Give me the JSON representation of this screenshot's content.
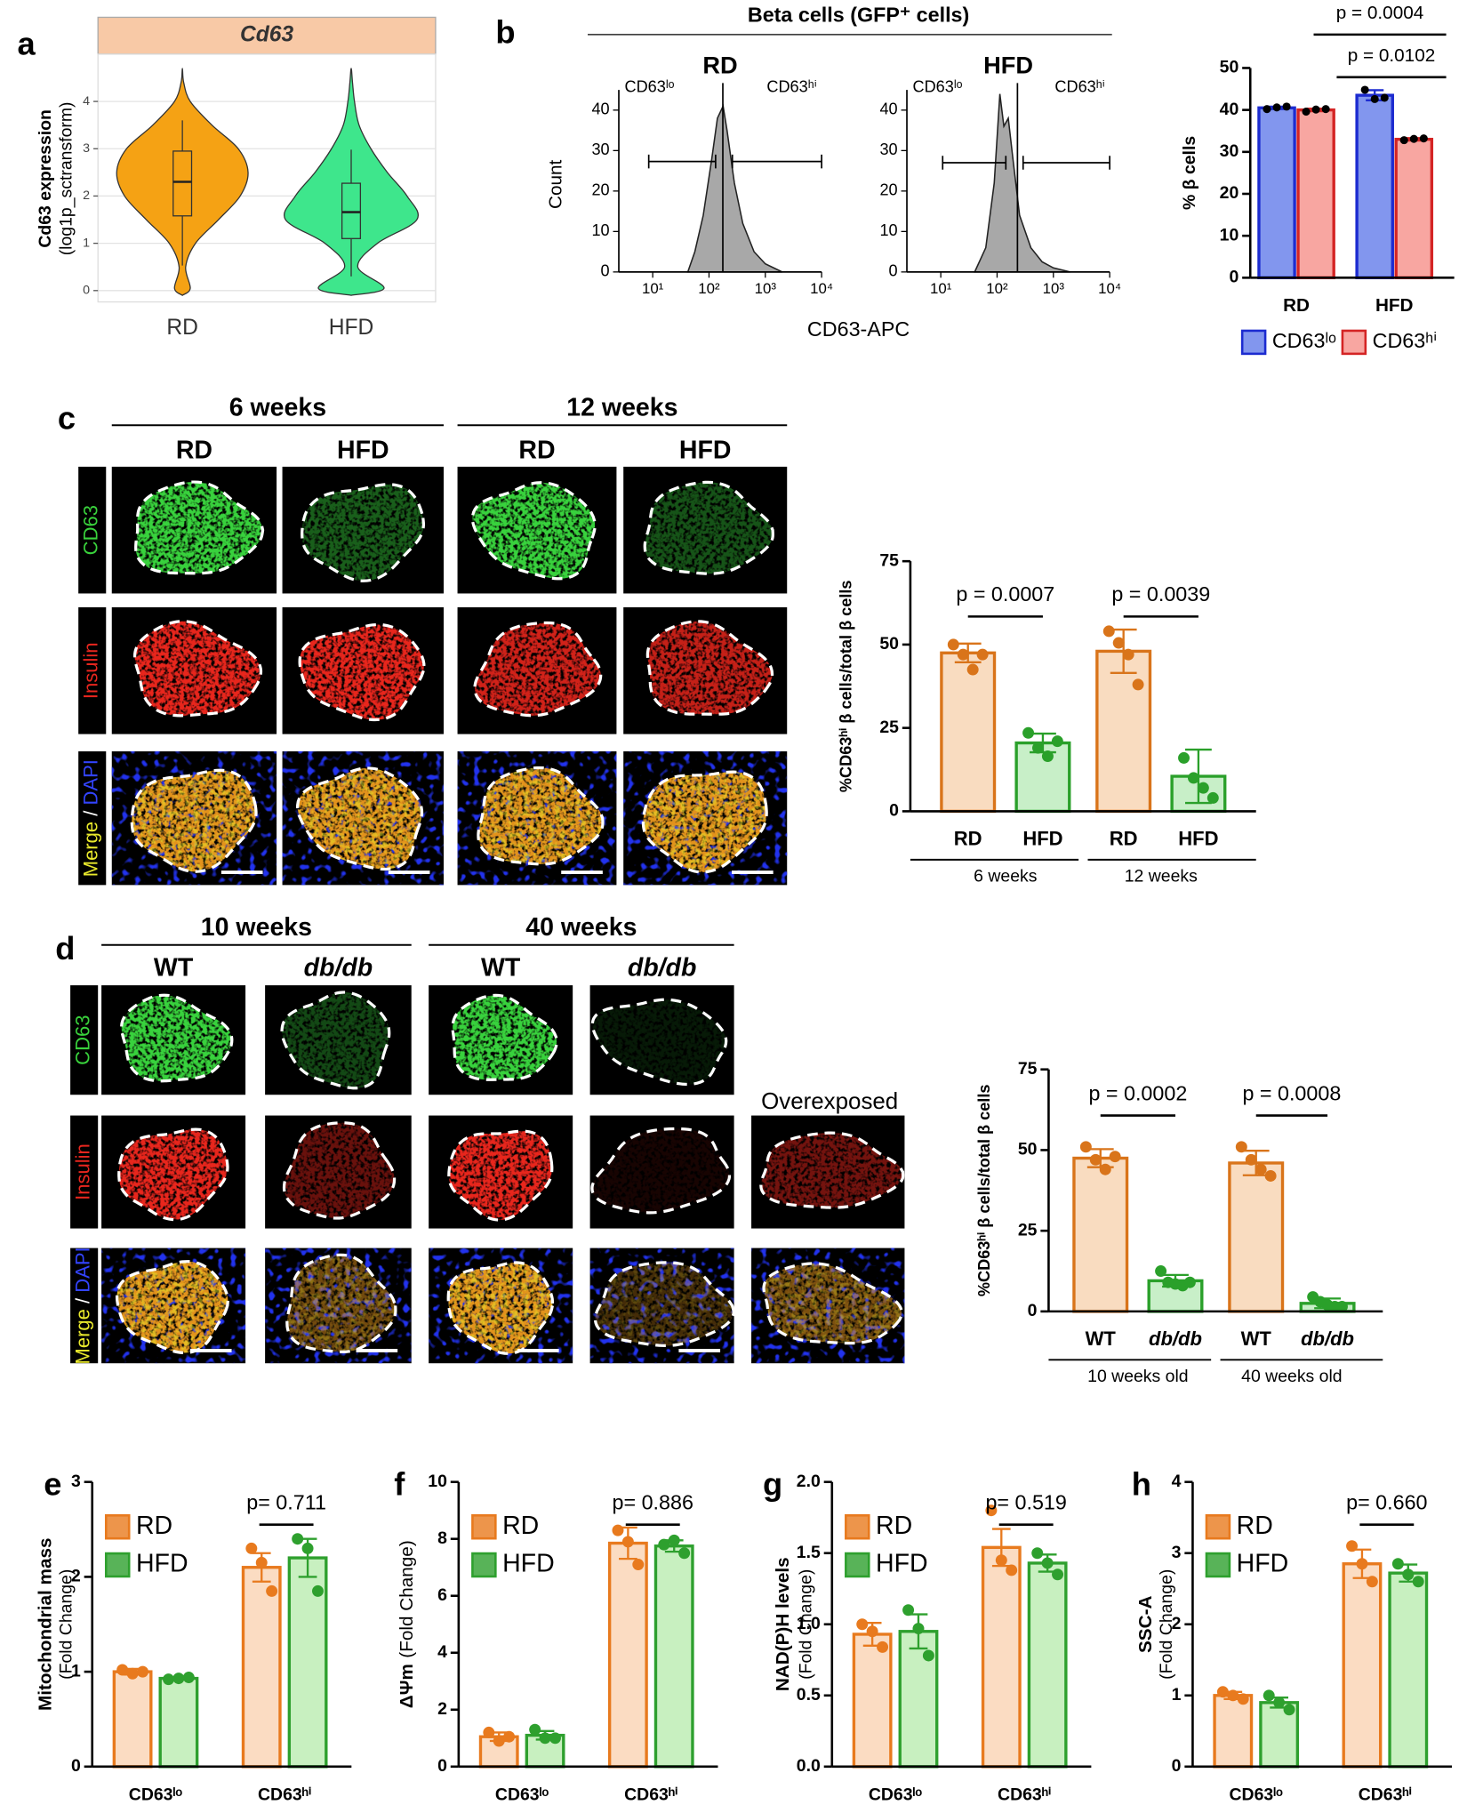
{
  "panel_labels": [
    "a",
    "b",
    "c",
    "d",
    "e",
    "f",
    "g",
    "h"
  ],
  "figure_c": {
    "groups": [
      "6 weeks",
      "12 weeks"
    ],
    "columns": [
      "RD",
      "HFD",
      "RD",
      "HFD"
    ],
    "row_labels": {
      "cd63": "CD63",
      "insulin": "Insulin",
      "merge": "Merge",
      "slash": " / ",
      "dapi": "DAPI"
    }
  },
  "figure_d": {
    "groups": [
      "10 weeks",
      "40 weeks"
    ],
    "columns": [
      "WT",
      "db/db",
      "WT",
      "db/db"
    ],
    "extra_column": "Overexposed",
    "row_labels": {
      "cd63": "CD63",
      "insulin": "Insulin",
      "merge": "Merge",
      "slash": " / ",
      "dapi": "DAPI"
    }
  },
  "chart_data": [
    {
      "type": "violin",
      "title": "Cd63",
      "ylabel": "Cd63 expression",
      "ylabel2": "(log1p_sctransform)",
      "categories": [
        "RD",
        "HFD"
      ],
      "colors": [
        "#f5a214",
        "#3ee68c"
      ],
      "medians": [
        2.3,
        1.66
      ],
      "q1": [
        1.58,
        1.1
      ],
      "q3": [
        2.95,
        2.27
      ],
      "whisker_low": [
        0.53,
        0.3
      ],
      "whisker_high": [
        3.6,
        2.98
      ],
      "density": {
        "y": [
          -0.1,
          0.05,
          0.5,
          1,
          1.5,
          2,
          2.5,
          3,
          3.5,
          4,
          4.4,
          4.7
        ],
        "widths": [
          [
            0,
            0.12,
            0.05,
            0.2,
            0.55,
            0.88,
            1.0,
            0.85,
            0.45,
            0.12,
            0.02,
            0
          ],
          [
            0,
            0.5,
            0.1,
            0.4,
            1.0,
            0.85,
            0.55,
            0.3,
            0.12,
            0.05,
            0.02,
            0
          ]
        ]
      },
      "ylim": [
        -0.24,
        5.0
      ],
      "yticks": [
        0,
        1,
        2,
        3,
        4
      ],
      "grid": true
    },
    {
      "type": "area",
      "suptitle": "Beta cells (GFP⁺ cells)",
      "title": "RD",
      "ylabel": "Count",
      "xlabel": "CD63-APC",
      "annotations": [
        "CD63ˡᵒ",
        "CD63ʰⁱ"
      ],
      "xscale": "log",
      "x": [
        42,
        56,
        79,
        112,
        141,
        178,
        209,
        282,
        398,
        631,
        1000,
        1995
      ],
      "values": [
        0,
        5,
        14,
        28,
        38,
        41,
        35,
        22,
        12,
        5,
        2,
        0
      ],
      "gate_line": 176,
      "gates": [
        {
          "range": [
            8.5,
            131
          ],
          "y": 27.3
        },
        {
          "range": [
            260,
            10000
          ],
          "y": 27.3
        }
      ],
      "xlim": [
        2.5,
        10000
      ],
      "xticks": [
        {
          "value": 10,
          "label": "10¹"
        },
        {
          "value": 100,
          "label": "10²"
        },
        {
          "value": 1000,
          "label": "10³"
        },
        {
          "value": 10000,
          "label": "10⁴"
        }
      ],
      "ylim": [
        0,
        45
      ],
      "yticks": [
        0,
        10,
        20,
        30,
        40
      ]
    },
    {
      "type": "area",
      "title": "HFD",
      "annotations": [
        "CD63ˡᵒ",
        "CD63ʰⁱ"
      ],
      "xscale": "log",
      "x": [
        40,
        63,
        89,
        112,
        132,
        158,
        191,
        251,
        398,
        631,
        1000,
        1995
      ],
      "values": [
        0,
        6,
        22,
        44,
        36,
        38,
        28,
        14,
        6,
        2.5,
        1,
        0
      ],
      "gate_line": 230,
      "gates": [
        {
          "range": [
            10.8,
            143
          ],
          "y": 27
        },
        {
          "range": [
            290,
            10000
          ],
          "y": 27
        }
      ],
      "xlim": [
        2.5,
        10000
      ],
      "xticks": [
        {
          "value": 10,
          "label": "10¹"
        },
        {
          "value": 100,
          "label": "10²"
        },
        {
          "value": 1000,
          "label": "10³"
        },
        {
          "value": 10000,
          "label": "10⁴"
        }
      ],
      "ylim": [
        0,
        45
      ],
      "yticks": [
        0,
        10,
        20,
        30,
        40
      ]
    },
    {
      "type": "bar",
      "ylabel": "% β cells",
      "categories": [
        "RD",
        "HFD"
      ],
      "series": [
        {
          "name": "CD63ˡᵒ",
          "color": "#8296ee",
          "edge": "#1c2bd0",
          "point_color": "#000000",
          "values": [
            40.5,
            43.5
          ],
          "errors": [
            0.3,
            1.2
          ],
          "points": [
            [
              40.2,
              40.6,
              40.8
            ],
            [
              44.8,
              42.6,
              42.9
            ]
          ]
        },
        {
          "name": "CD63ʰⁱ",
          "color": "#f8a6a1",
          "edge": "#d42424",
          "point_color": "#000000",
          "values": [
            40.0,
            33.0
          ],
          "errors": [
            0.3,
            0.3
          ],
          "points": [
            [
              39.6,
              40.1,
              40.2
            ],
            [
              32.8,
              33.1,
              33.2
            ]
          ]
        }
      ],
      "annotations": [
        "p = 0.0004",
        "p = 0.0102"
      ],
      "ylim": [
        0,
        50
      ],
      "yticks": [
        0,
        10,
        20,
        30,
        40,
        50
      ]
    },
    {
      "type": "bar",
      "ylabel": "%CD63ʰⁱ β cells/total β cells",
      "categories": [
        "RD",
        "HFD",
        "RD",
        "HFD"
      ],
      "group_labels": [
        "6 weeks",
        "12 weeks"
      ],
      "colors": [
        "#f9dcc0",
        "#c8efc8",
        "#f9dcc0",
        "#c8efc8"
      ],
      "edges": [
        "#d9741a",
        "#2aa02a",
        "#d9741a",
        "#2aa02a"
      ],
      "values": [
        47.5,
        20.5,
        48,
        10.5
      ],
      "errors": [
        2.8,
        2.8,
        6.5,
        8.0
      ],
      "points": [
        [
          50,
          47,
          42.5,
          47
        ],
        [
          23.5,
          19,
          16.5,
          21
        ],
        [
          54,
          50.5,
          47,
          38
        ],
        [
          16,
          10,
          7,
          4
        ]
      ],
      "annotations": [
        "p = 0.0007",
        "p = 0.0039"
      ],
      "ylim": [
        0,
        75
      ],
      "yticks": [
        0,
        25,
        50,
        75
      ]
    },
    {
      "type": "bar",
      "ylabel": "%CD63ʰⁱ β cells/total β cells",
      "categories": [
        "WT",
        "db/db",
        "WT",
        "db/db"
      ],
      "group_labels": [
        "10 weeks old",
        "40 weeks old"
      ],
      "colors": [
        "#f9dcc0",
        "#c8efc8",
        "#f9dcc0",
        "#c8efc8"
      ],
      "edges": [
        "#d9741a",
        "#2aa02a",
        "#d9741a",
        "#2aa02a"
      ],
      "values": [
        47.5,
        9.5,
        46,
        2.5
      ],
      "errors": [
        2.8,
        1.8,
        3.8,
        1.5
      ],
      "points": [
        [
          51,
          47,
          44,
          48
        ],
        [
          12.5,
          9,
          8.5,
          8,
          9
        ],
        [
          51,
          47,
          44,
          42
        ],
        [
          4.5,
          3,
          2,
          1.5,
          1.5
        ]
      ],
      "annotations": [
        "p = 0.0002",
        "p = 0.0008"
      ],
      "ylim": [
        0,
        75
      ],
      "yticks": [
        0,
        25,
        50,
        75
      ]
    },
    {
      "type": "bar",
      "ylabel": "Mitochondrial mass",
      "ylabel2": "(Fold Change)",
      "categories": [
        "CD63ˡᵒ",
        "CD63ʰⁱ"
      ],
      "series": [
        {
          "name": "RD",
          "color": "#fbdcc2",
          "edge": "#e87a1e",
          "values": [
            1.0,
            2.1
          ],
          "errors": [
            0.03,
            0.15
          ],
          "points": [
            [
              1.02,
              0.98,
              1.0
            ],
            [
              2.3,
              2.15,
              1.85
            ]
          ]
        },
        {
          "name": "HFD",
          "color": "#c8f0c0",
          "edge": "#2ea02e",
          "values": [
            0.93,
            2.2
          ],
          "errors": [
            0.01,
            0.2
          ],
          "points": [
            [
              0.92,
              0.93,
              0.94
            ],
            [
              2.4,
              2.3,
              1.85
            ]
          ]
        }
      ],
      "annotations": [
        "p= 0.711"
      ],
      "ylim": [
        0,
        3
      ],
      "yticks": [
        0,
        1,
        2,
        3
      ]
    },
    {
      "type": "bar",
      "ylabel": "ΔΨm",
      "ylabel2": "(Fold Change)",
      "categories": [
        "CD63ˡᵒ",
        "CD63ʰⁱ"
      ],
      "series": [
        {
          "name": "RD",
          "color": "#fbdcc2",
          "edge": "#e87a1e",
          "values": [
            1.05,
            7.85
          ],
          "errors": [
            0.15,
            0.55
          ],
          "points": [
            [
              1.2,
              0.9,
              1.05
            ],
            [
              8.3,
              7.9,
              7.1
            ]
          ]
        },
        {
          "name": "HFD",
          "color": "#c8f0c0",
          "edge": "#2ea02e",
          "values": [
            1.1,
            7.75
          ],
          "errors": [
            0.15,
            0.2
          ],
          "points": [
            [
              1.3,
              1.0,
              1.0
            ],
            [
              7.8,
              7.95,
              7.5
            ]
          ]
        }
      ],
      "annotations": [
        "p= 0.886"
      ],
      "ylim": [
        0,
        10
      ],
      "yticks": [
        0,
        2,
        4,
        6,
        8,
        10
      ]
    },
    {
      "type": "bar",
      "ylabel": "NAD(P)H levels",
      "ylabel2": "(Fold Change)",
      "categories": [
        "CD63ˡᵒ",
        "CD63ʰⁱ"
      ],
      "series": [
        {
          "name": "RD",
          "color": "#fbdcc2",
          "edge": "#e87a1e",
          "values": [
            0.93,
            1.54
          ],
          "errors": [
            0.08,
            0.13
          ],
          "points": [
            [
              1.0,
              0.95,
              0.84
            ],
            [
              1.8,
              1.45,
              1.38
            ]
          ]
        },
        {
          "name": "HFD",
          "color": "#c8f0c0",
          "edge": "#2ea02e",
          "values": [
            0.95,
            1.43
          ],
          "errors": [
            0.12,
            0.06
          ],
          "points": [
            [
              1.1,
              0.97,
              0.78
            ],
            [
              1.5,
              1.43,
              1.35
            ]
          ]
        }
      ],
      "annotations": [
        "p= 0.519"
      ],
      "ylim": [
        0,
        2
      ],
      "yticks": [
        {
          "value": 0,
          "label": "0.0"
        },
        0.5,
        {
          "value": 1,
          "label": "1.0"
        },
        1.5,
        {
          "value": 2,
          "label": "2.0"
        }
      ]
    },
    {
      "type": "bar",
      "ylabel": "SSC-A",
      "ylabel2": "(Fold Change)",
      "categories": [
        "CD63ˡᵒ",
        "CD63ʰⁱ"
      ],
      "series": [
        {
          "name": "RD",
          "color": "#fbdcc2",
          "edge": "#e87a1e",
          "values": [
            1.0,
            2.85
          ],
          "errors": [
            0.05,
            0.2
          ],
          "points": [
            [
              1.05,
              1.0,
              0.95
            ],
            [
              3.1,
              2.85,
              2.6
            ]
          ]
        },
        {
          "name": "HFD",
          "color": "#c8f0c0",
          "edge": "#2ea02e",
          "values": [
            0.9,
            2.72
          ],
          "errors": [
            0.07,
            0.12
          ],
          "points": [
            [
              1.0,
              0.9,
              0.8
            ],
            [
              2.85,
              2.7,
              2.6
            ]
          ]
        }
      ],
      "annotations": [
        "p= 0.660"
      ],
      "ylim": [
        0,
        4
      ],
      "yticks": [
        0,
        1,
        2,
        3,
        4
      ]
    }
  ]
}
